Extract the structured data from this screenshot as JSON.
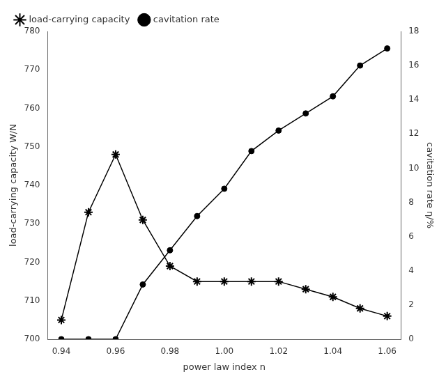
{
  "chart_data": {
    "type": "line",
    "xlabel": "power law index n",
    "ylabel": "load-carrying capacity W/N",
    "y2label": "cavitation rate η/%",
    "x": [
      0.94,
      0.95,
      0.96,
      0.97,
      0.98,
      0.99,
      1.0,
      1.01,
      1.02,
      1.03,
      1.04,
      1.05,
      1.06
    ],
    "series": [
      {
        "name": "load-carrying capacity",
        "color": "#000000",
        "marker": "star",
        "line_style": "solid",
        "values": [
          705,
          733,
          748,
          731,
          719,
          715,
          715,
          715,
          715,
          713,
          711,
          708,
          706
        ]
      },
      {
        "name": "cavitation rate",
        "color": "#000000",
        "marker": "circle",
        "line_style": "solid",
        "axis": "y2",
        "values": [
          0.0,
          0.0,
          0.0,
          3.2,
          5.2,
          7.2,
          8.8,
          11.0,
          12.2,
          13.2,
          14.2,
          16.0,
          17.0
        ]
      }
    ],
    "xlim": [
      0.935,
      1.065
    ],
    "xticks": [
      0.94,
      0.96,
      0.98,
      {
        "value": 1.0,
        "label": "1.00"
      },
      1.02,
      1.04,
      1.06
    ],
    "ylim": [
      700,
      780
    ],
    "yticks": [
      700,
      710,
      720,
      730,
      740,
      750,
      760,
      770,
      780
    ],
    "y2lim": [
      0,
      18
    ],
    "y2ticks": [
      0,
      2,
      4,
      6,
      8,
      10,
      12,
      14,
      16,
      18
    ],
    "legend": "upper left",
    "grid": false
  }
}
